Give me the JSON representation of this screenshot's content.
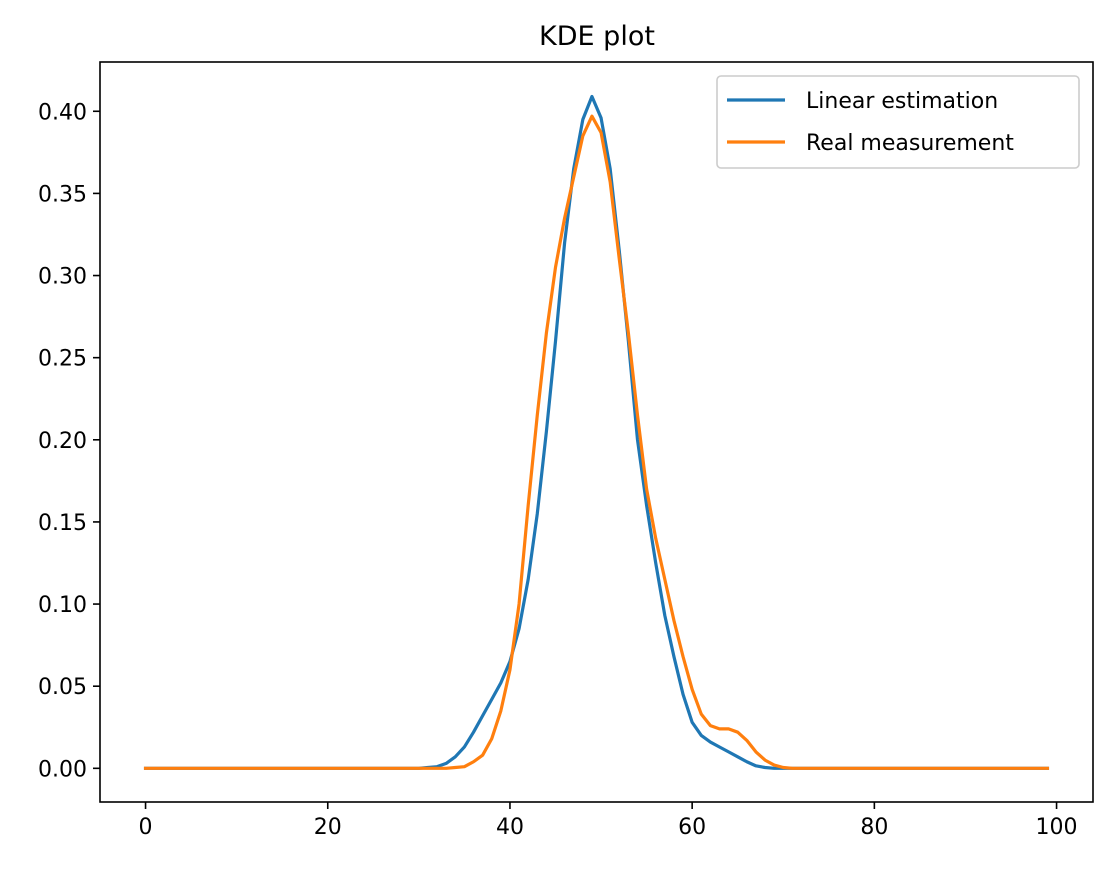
{
  "chart_data": {
    "type": "line",
    "title": "KDE plot",
    "xlabel": "",
    "ylabel": "",
    "xlim": [
      -5,
      104
    ],
    "ylim": [
      -0.0205,
      0.43
    ],
    "xticks": [
      0,
      20,
      40,
      60,
      80,
      100
    ],
    "yticks": [
      0.0,
      0.05,
      0.1,
      0.15,
      0.2,
      0.25,
      0.3,
      0.35,
      0.4
    ],
    "xtick_labels": [
      "0",
      "20",
      "40",
      "60",
      "80",
      "100"
    ],
    "ytick_labels": [
      "0.00",
      "0.05",
      "0.10",
      "0.15",
      "0.20",
      "0.25",
      "0.30",
      "0.35",
      "0.40"
    ],
    "grid": false,
    "legend": "top-right",
    "series": [
      {
        "name": "Linear estimation",
        "color": "#1f77b4",
        "x": [
          0,
          30,
          31,
          32,
          33,
          34,
          35,
          36,
          37,
          38,
          39,
          40,
          41,
          42,
          43,
          44,
          45,
          46,
          47,
          48,
          49,
          50,
          51,
          52,
          53,
          54,
          55,
          56,
          57,
          58,
          59,
          60,
          61,
          62,
          63,
          64,
          65,
          66,
          67,
          68,
          69,
          70,
          71,
          99
        ],
        "y": [
          0.0,
          0.0,
          0.0005,
          0.001,
          0.003,
          0.007,
          0.013,
          0.022,
          0.032,
          0.042,
          0.052,
          0.065,
          0.085,
          0.115,
          0.155,
          0.205,
          0.26,
          0.32,
          0.365,
          0.395,
          0.409,
          0.396,
          0.365,
          0.315,
          0.26,
          0.2,
          0.16,
          0.125,
          0.093,
          0.068,
          0.045,
          0.028,
          0.02,
          0.016,
          0.013,
          0.01,
          0.007,
          0.004,
          0.0015,
          0.0005,
          0.0,
          0.0,
          0.0,
          0.0
        ]
      },
      {
        "name": "Real measurement",
        "color": "#ff7f0e",
        "x": [
          0,
          33,
          34,
          35,
          36,
          37,
          38,
          39,
          40,
          41,
          42,
          43,
          44,
          45,
          46,
          47,
          48,
          49,
          50,
          51,
          52,
          53,
          54,
          55,
          56,
          57,
          58,
          59,
          60,
          61,
          62,
          63,
          64,
          65,
          66,
          67,
          68,
          69,
          70,
          71,
          99
        ],
        "y": [
          0.0,
          0.0,
          0.0005,
          0.001,
          0.004,
          0.008,
          0.018,
          0.035,
          0.06,
          0.1,
          0.16,
          0.215,
          0.265,
          0.305,
          0.335,
          0.36,
          0.385,
          0.397,
          0.387,
          0.357,
          0.31,
          0.265,
          0.215,
          0.17,
          0.14,
          0.115,
          0.09,
          0.068,
          0.048,
          0.033,
          0.026,
          0.024,
          0.024,
          0.022,
          0.017,
          0.01,
          0.005,
          0.002,
          0.0005,
          0.0,
          0.0
        ]
      }
    ]
  }
}
